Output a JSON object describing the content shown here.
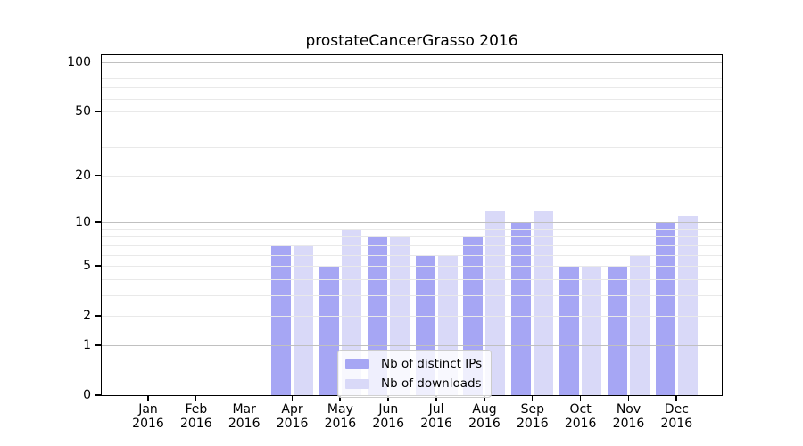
{
  "title": "prostateCancerGrasso 2016",
  "chart_data": {
    "type": "bar",
    "title": "prostateCancerGrasso 2016",
    "categories": [
      "Jan",
      "Feb",
      "Mar",
      "Apr",
      "May",
      "Jun",
      "Jul",
      "Aug",
      "Sep",
      "Oct",
      "Nov",
      "Dec"
    ],
    "x_year_label": "2016",
    "series": [
      {
        "name": "Nb of distinct IPs",
        "color": "#a6a6f4",
        "values": [
          0,
          0,
          0,
          7,
          5,
          8,
          6,
          8,
          10,
          5,
          5,
          10
        ]
      },
      {
        "name": "Nb of downloads",
        "color": "#d9d9f8",
        "values": [
          0,
          0,
          0,
          7,
          9,
          8,
          6,
          12,
          12,
          5,
          6,
          11
        ]
      }
    ],
    "xlabel": "",
    "ylabel": "",
    "y_scale": "log1p",
    "ylim": [
      0,
      113
    ],
    "y_ticks": [
      0,
      1,
      2,
      5,
      10,
      20,
      50,
      100
    ],
    "y_major_gridlines": [
      1,
      10,
      100
    ],
    "y_minor_gridlines": [
      2,
      3,
      4,
      5,
      6,
      7,
      8,
      9,
      20,
      30,
      40,
      50,
      60,
      70,
      80,
      90
    ],
    "grid": true,
    "legend_position": "lower center"
  },
  "legend": {
    "items": [
      {
        "label": "Nb of distinct IPs",
        "color": "#a6a6f4"
      },
      {
        "label": "Nb of downloads",
        "color": "#d9d9f8"
      }
    ]
  },
  "colors": {
    "background": "#ffffff",
    "bar_distinct_ips": "#a6a6f4",
    "bar_downloads": "#d9d9f8",
    "grid_major": "#c0c0c0",
    "grid_minor": "#e9e9e9",
    "axis": "#000000",
    "text": "#000000"
  }
}
